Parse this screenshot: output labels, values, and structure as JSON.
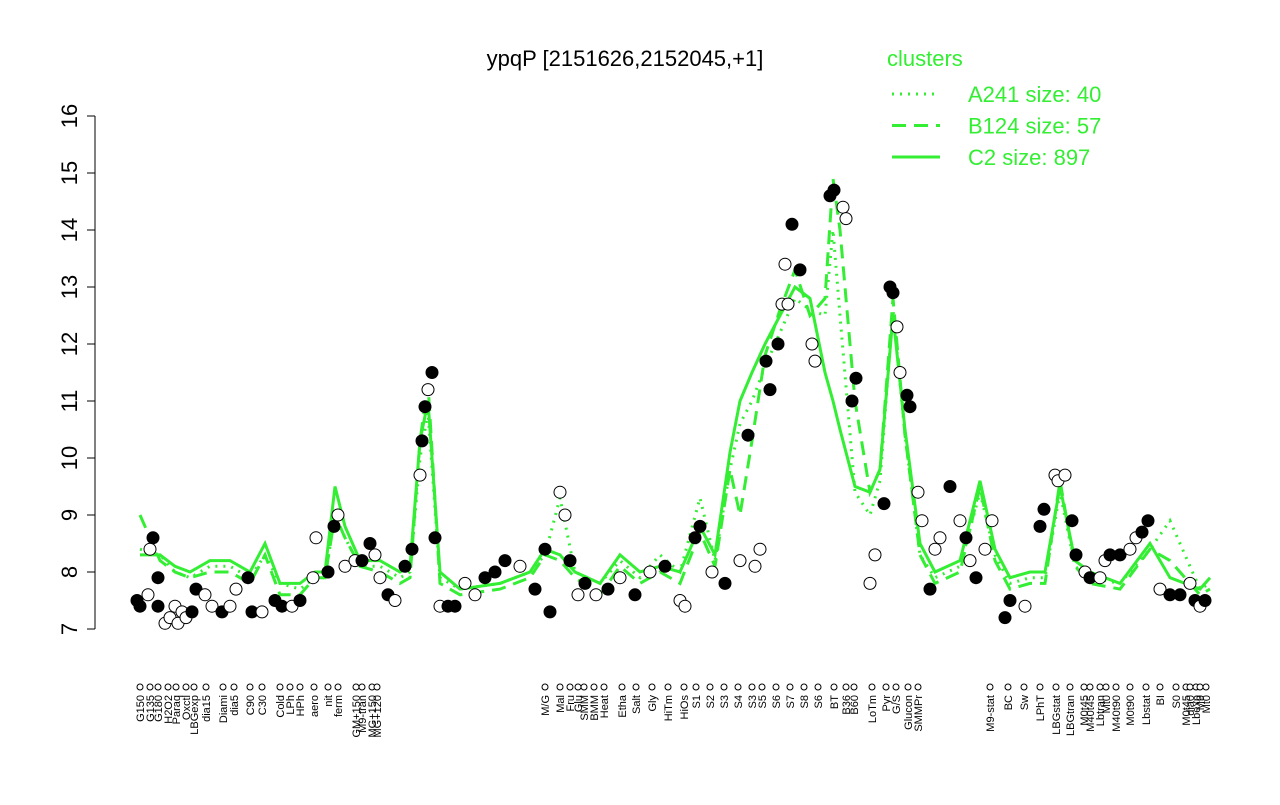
{
  "chart_data": {
    "type": "line",
    "title": "ypqP [2151626,2152045,+1]",
    "legend_title": "clusters",
    "xlim": [
      95,
      1215
    ],
    "ylim": [
      7,
      16
    ],
    "yticks": [
      7,
      8,
      9,
      10,
      11,
      12,
      13,
      14,
      15,
      16
    ],
    "xticks": [
      {
        "value": 140,
        "label": "G150"
      },
      {
        "value": 150,
        "label": "G135"
      },
      {
        "value": 158,
        "label": "G180"
      },
      {
        "value": 168,
        "label": "H2O2"
      },
      {
        "value": 176,
        "label": "Paraq"
      },
      {
        "value": 186,
        "label": "Oxctl"
      },
      {
        "value": 194,
        "label": "LBGexp"
      },
      {
        "value": 206,
        "label": "dia15"
      },
      {
        "value": 223,
        "label": "Diami"
      },
      {
        "value": 234,
        "label": "dia5"
      },
      {
        "value": 250,
        "label": "C90"
      },
      {
        "value": 262,
        "label": "C30"
      },
      {
        "value": 280,
        "label": "Cold"
      },
      {
        "value": 290,
        "label": "LPh"
      },
      {
        "value": 300,
        "label": "HPh"
      },
      {
        "value": 314,
        "label": "aero"
      },
      {
        "value": 328,
        "label": "nit"
      },
      {
        "value": 338,
        "label": "ferm"
      },
      {
        "value": 356,
        "label": "GM+150"
      },
      {
        "value": 362,
        "label": "M9-tran"
      },
      {
        "value": 372,
        "label": "MG+150"
      },
      {
        "value": 377,
        "label": "MG+120"
      },
      {
        "value": 545,
        "label": "M/G"
      },
      {
        "value": 560,
        "label": "Mal"
      },
      {
        "value": 570,
        "label": "Fru"
      },
      {
        "value": 578,
        "label": "Glu"
      },
      {
        "value": 584,
        "label": "SMM"
      },
      {
        "value": 594,
        "label": "BMM"
      },
      {
        "value": 604,
        "label": "Heat"
      },
      {
        "value": 622,
        "label": "Etha"
      },
      {
        "value": 636,
        "label": "Salt"
      },
      {
        "value": 652,
        "label": "Gly"
      },
      {
        "value": 668,
        "label": "HiTm"
      },
      {
        "value": 684,
        "label": "HiOs"
      },
      {
        "value": 696,
        "label": "S1"
      },
      {
        "value": 710,
        "label": "S2"
      },
      {
        "value": 724,
        "label": "S3"
      },
      {
        "value": 738,
        "label": "S4"
      },
      {
        "value": 752,
        "label": "S3"
      },
      {
        "value": 762,
        "label": "S5"
      },
      {
        "value": 776,
        "label": "S6"
      },
      {
        "value": 790,
        "label": "S7"
      },
      {
        "value": 804,
        "label": "S8"
      },
      {
        "value": 818,
        "label": "S6"
      },
      {
        "value": 834,
        "label": "BT"
      },
      {
        "value": 846,
        "label": "B36"
      },
      {
        "value": 854,
        "label": "B60"
      },
      {
        "value": 872,
        "label": "LoTm"
      },
      {
        "value": 886,
        "label": "Pyr"
      },
      {
        "value": 896,
        "label": "G/S"
      },
      {
        "value": 908,
        "label": "Glucon"
      },
      {
        "value": 918,
        "label": "SMMPr"
      },
      {
        "value": 990,
        "label": "M9-stat"
      },
      {
        "value": 1008,
        "label": "BC"
      },
      {
        "value": 1024,
        "label": "Sw"
      },
      {
        "value": 1040,
        "label": "LPhT"
      },
      {
        "value": 1056,
        "label": "LBGstat"
      },
      {
        "value": 1070,
        "label": "LBGtran"
      },
      {
        "value": 1084,
        "label": "M0t45"
      },
      {
        "value": 1090,
        "label": "M40t45"
      },
      {
        "value": 1100,
        "label": "Lbtran"
      },
      {
        "value": 1106,
        "label": "Mt0"
      },
      {
        "value": 1116,
        "label": "M40t90"
      },
      {
        "value": 1130,
        "label": "M0t90"
      },
      {
        "value": 1146,
        "label": "Lbstat"
      },
      {
        "value": 1160,
        "label": "BI"
      },
      {
        "value": 1176,
        "label": "S0"
      },
      {
        "value": 1186,
        "label": "M0t45"
      },
      {
        "value": 1190,
        "label": "dia0"
      },
      {
        "value": 1196,
        "label": "Lbexp"
      },
      {
        "value": 1200,
        "label": "M9"
      },
      {
        "value": 1206,
        "label": "Mt0"
      }
    ],
    "x": [
      140,
      160,
      175,
      190,
      210,
      230,
      250,
      265,
      280,
      300,
      315,
      325,
      335,
      345,
      360,
      380,
      400,
      410,
      420,
      428,
      440,
      460,
      500,
      530,
      545,
      560,
      575,
      600,
      620,
      640,
      660,
      680,
      700,
      715,
      730,
      740,
      752,
      765,
      780,
      795,
      810,
      825,
      833,
      840,
      855,
      870,
      880,
      893,
      905,
      920,
      935,
      960,
      980,
      995,
      1010,
      1030,
      1045,
      1060,
      1075,
      1090,
      1120,
      1150,
      1170,
      1200,
      1210
    ],
    "series": [
      {
        "name": "A241 size: 40",
        "color": "#33ee33",
        "dash": "dotted",
        "values": [
          8.4,
          8.3,
          8.0,
          7.9,
          8.1,
          8.1,
          7.9,
          8.3,
          7.8,
          7.7,
          7.9,
          7.9,
          9.0,
          8.6,
          8.1,
          8.1,
          7.9,
          8.0,
          10.0,
          10.8,
          7.9,
          7.7,
          7.8,
          8.0,
          8.3,
          9.3,
          8.0,
          7.8,
          8.2,
          7.9,
          8.3,
          8.0,
          9.3,
          8.2,
          9.8,
          10.6,
          11.0,
          11.6,
          12.2,
          12.8,
          12.6,
          12.5,
          14.0,
          12.5,
          9.4,
          9.0,
          9.6,
          12.6,
          10.4,
          8.3,
          7.9,
          8.1,
          9.4,
          8.3,
          7.8,
          7.9,
          7.9,
          9.4,
          8.1,
          7.9,
          7.8,
          8.4,
          8.9,
          7.7,
          7.8
        ]
      },
      {
        "name": "B124 size: 57",
        "color": "#33ee33",
        "dash": "dashed",
        "values": [
          9.0,
          8.2,
          8.0,
          7.9,
          8.0,
          8.0,
          7.8,
          8.3,
          7.6,
          7.6,
          7.9,
          7.9,
          9.0,
          8.6,
          8.1,
          8.0,
          7.8,
          7.9,
          10.3,
          11.3,
          7.8,
          7.6,
          7.7,
          7.9,
          8.3,
          8.2,
          7.9,
          7.6,
          8.1,
          7.8,
          8.0,
          7.8,
          8.7,
          8.1,
          9.8,
          9.0,
          10.3,
          11.8,
          12.6,
          13.3,
          12.5,
          12.8,
          14.9,
          14.0,
          11.0,
          9.4,
          9.8,
          12.8,
          10.4,
          8.3,
          7.8,
          8.0,
          9.5,
          8.2,
          7.7,
          7.8,
          7.8,
          9.6,
          8.1,
          7.8,
          7.7,
          8.4,
          8.2,
          7.6,
          7.7
        ]
      },
      {
        "name": "C2 size: 897",
        "color": "#33ee33",
        "dash": "solid",
        "values": [
          8.3,
          8.3,
          8.1,
          8.0,
          8.2,
          8.2,
          8.0,
          8.5,
          7.8,
          7.8,
          8.0,
          8.0,
          9.5,
          8.8,
          8.2,
          8.2,
          8.0,
          8.1,
          10.3,
          11.0,
          8.0,
          7.7,
          7.8,
          8.0,
          8.4,
          8.3,
          8.0,
          7.8,
          8.3,
          8.0,
          8.1,
          8.0,
          8.8,
          8.3,
          10.1,
          11.0,
          11.5,
          12.0,
          12.5,
          13.0,
          12.8,
          11.5,
          11.0,
          10.5,
          9.5,
          9.4,
          9.8,
          12.5,
          10.5,
          8.5,
          8.0,
          8.2,
          9.6,
          8.4,
          7.9,
          8.0,
          8.0,
          9.5,
          8.2,
          8.0,
          7.8,
          8.5,
          7.9,
          7.7,
          7.9
        ]
      }
    ],
    "points": {
      "x": [
        137,
        140,
        148,
        150,
        153,
        158,
        158,
        165,
        170,
        175,
        178,
        182,
        186,
        192,
        196,
        205,
        212,
        222,
        230,
        236,
        248,
        252,
        262,
        275,
        282,
        292,
        300,
        313,
        316,
        328,
        334,
        338,
        345,
        355,
        362,
        370,
        375,
        380,
        388,
        395,
        405,
        412,
        420,
        422,
        425,
        428,
        432,
        435,
        440,
        448,
        455,
        465,
        475,
        485,
        495,
        505,
        520,
        535,
        545,
        550,
        560,
        565,
        570,
        578,
        585,
        596,
        608,
        620,
        635,
        650,
        665,
        680,
        685,
        695,
        700,
        712,
        725,
        740,
        748,
        755,
        760,
        766,
        770,
        778,
        782,
        785,
        788,
        792,
        800,
        812,
        815,
        830,
        834,
        843,
        846,
        852,
        856,
        870,
        875,
        884,
        890,
        893,
        897,
        900,
        907,
        910,
        918,
        922,
        930,
        935,
        940,
        950,
        960,
        966,
        970,
        976,
        985,
        992,
        1005,
        1010,
        1025,
        1040,
        1044,
        1055,
        1058,
        1065,
        1072,
        1076,
        1085,
        1090,
        1100,
        1105,
        1110,
        1120,
        1130,
        1136,
        1142,
        1148,
        1160,
        1170,
        1180,
        1190,
        1195,
        1200,
        1205
      ],
      "y": [
        7.5,
        7.4,
        7.6,
        8.4,
        8.6,
        7.9,
        7.4,
        7.1,
        7.2,
        7.4,
        7.1,
        7.3,
        7.2,
        7.3,
        7.7,
        7.6,
        7.4,
        7.3,
        7.4,
        7.7,
        7.9,
        7.3,
        7.3,
        7.5,
        7.4,
        7.4,
        7.5,
        7.9,
        8.6,
        8.0,
        8.8,
        9.0,
        8.1,
        8.2,
        8.2,
        8.5,
        8.3,
        7.9,
        7.6,
        7.5,
        8.1,
        8.4,
        9.7,
        10.3,
        10.9,
        11.2,
        11.5,
        8.6,
        7.4,
        7.4,
        7.4,
        7.8,
        7.6,
        7.9,
        8.0,
        8.2,
        8.1,
        7.7,
        8.4,
        7.3,
        9.4,
        9.0,
        8.2,
        7.6,
        7.8,
        7.6,
        7.7,
        7.9,
        7.6,
        8.0,
        8.1,
        7.5,
        7.4,
        8.6,
        8.8,
        8.0,
        7.8,
        8.2,
        10.4,
        8.1,
        8.4,
        11.7,
        11.2,
        12.0,
        12.7,
        13.4,
        12.7,
        14.1,
        13.3,
        12.0,
        11.7,
        14.6,
        14.7,
        14.4,
        14.2,
        11.0,
        11.4,
        7.8,
        8.3,
        9.2,
        13.0,
        12.9,
        12.3,
        11.5,
        11.1,
        10.9,
        9.4,
        8.9,
        7.7,
        8.4,
        8.6,
        9.5,
        8.9,
        8.6,
        8.2,
        7.9,
        8.4,
        8.9,
        7.2,
        7.5,
        7.4,
        8.8,
        9.1,
        9.7,
        9.6,
        9.7,
        8.9,
        8.3,
        8.0,
        7.9,
        7.9,
        8.2,
        8.3,
        8.3,
        8.4,
        8.6,
        8.7,
        8.9,
        7.7,
        7.6,
        7.6,
        7.8,
        7.5,
        7.4,
        7.5
      ],
      "filled": [
        1,
        1,
        0,
        0,
        1,
        1,
        1,
        0,
        0,
        0,
        0,
        0,
        0,
        1,
        1,
        0,
        0,
        1,
        0,
        0,
        1,
        1,
        0,
        1,
        1,
        0,
        1,
        0,
        0,
        1,
        1,
        0,
        0,
        0,
        1,
        1,
        0,
        0,
        1,
        0,
        1,
        1,
        0,
        1,
        1,
        0,
        1,
        1,
        0,
        1,
        1,
        0,
        0,
        1,
        1,
        1,
        0,
        1,
        1,
        1,
        0,
        0,
        1,
        0,
        1,
        0,
        1,
        0,
        1,
        0,
        1,
        0,
        0,
        1,
        1,
        0,
        1,
        0,
        1,
        0,
        0,
        1,
        1,
        1,
        0,
        0,
        0,
        1,
        1,
        0,
        0,
        1,
        1,
        0,
        0,
        1,
        1,
        0,
        0,
        1,
        1,
        1,
        0,
        0,
        1,
        1,
        0,
        0,
        1,
        0,
        0,
        1,
        0,
        1,
        0,
        1,
        0,
        0,
        1,
        1,
        0,
        1,
        1,
        0,
        0,
        0,
        1,
        1,
        0,
        1,
        0,
        0,
        1,
        1,
        0,
        0,
        1,
        1,
        0,
        1,
        1,
        0,
        1,
        0,
        1
      ]
    }
  }
}
